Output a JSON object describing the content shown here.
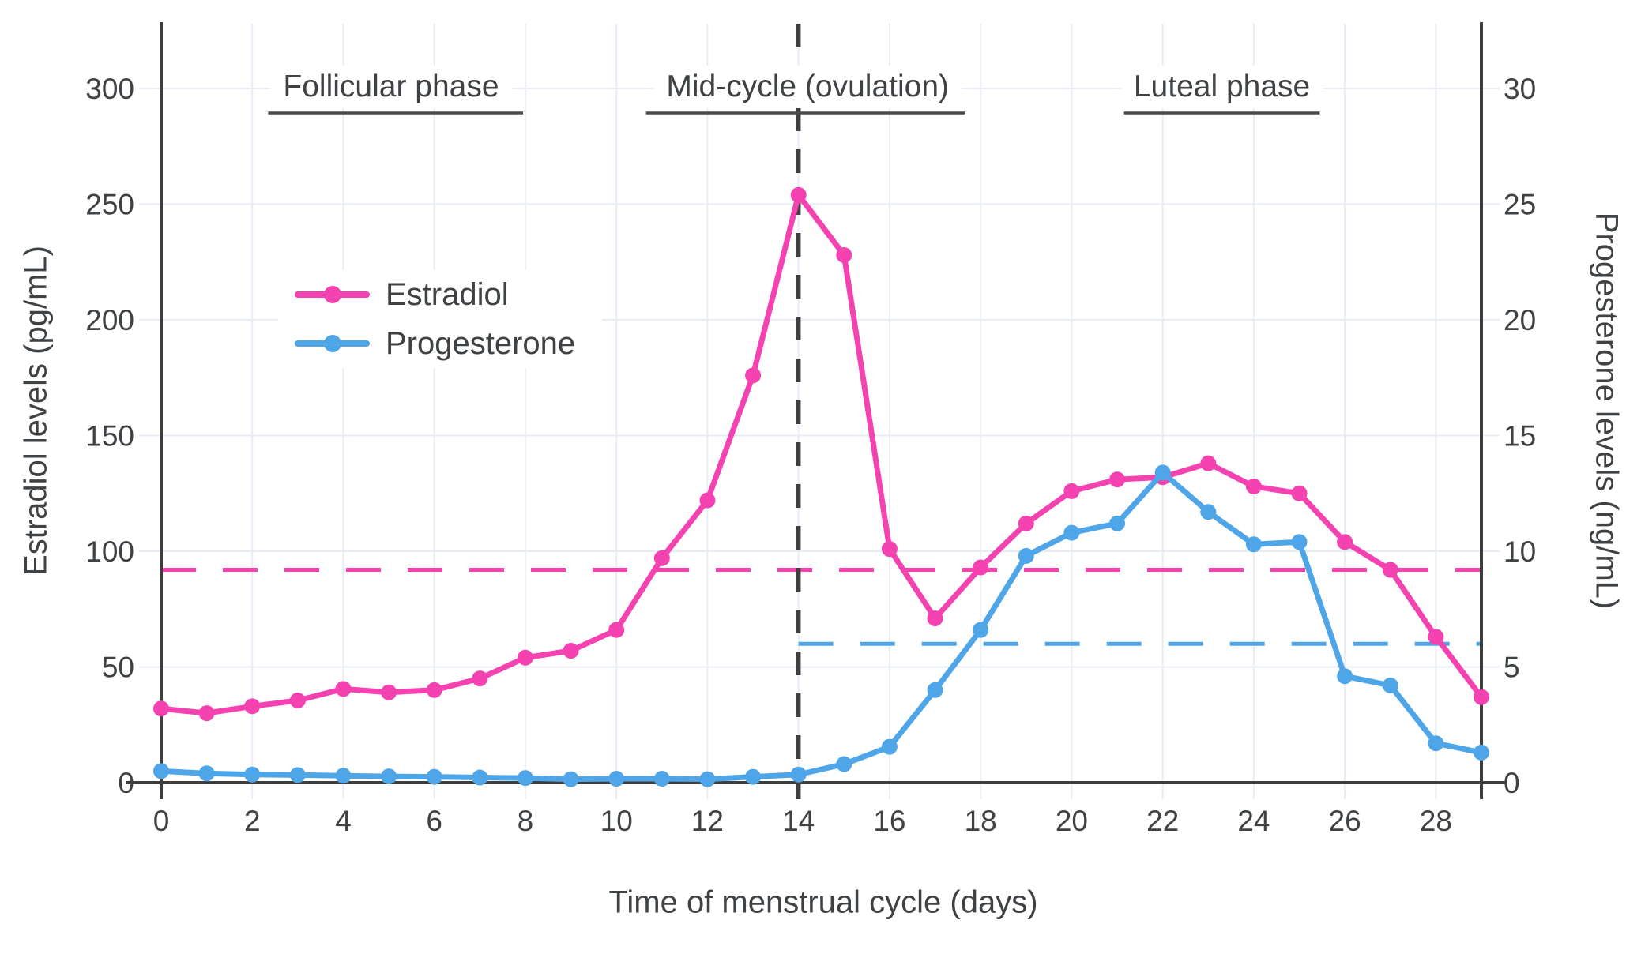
{
  "chart_data": {
    "type": "line",
    "title": "",
    "x": [
      0,
      1,
      2,
      3,
      4,
      5,
      6,
      7,
      8,
      9,
      10,
      11,
      12,
      13,
      14,
      15,
      16,
      17,
      18,
      19,
      20,
      21,
      22,
      23,
      24,
      25,
      26,
      27,
      28,
      29
    ],
    "series": [
      {
        "name": "Estradiol",
        "axis": "left",
        "color": "#f442b1",
        "values": [
          32,
          30,
          33,
          35.5,
          40.5,
          39,
          40,
          45,
          54,
          57,
          66,
          97,
          122,
          176,
          254,
          228,
          101,
          71,
          93,
          112,
          126,
          131,
          132,
          138,
          128,
          125,
          104,
          92,
          63,
          37
        ]
      },
      {
        "name": "Progesterone",
        "axis": "right",
        "color": "#4ea6e9",
        "values": [
          0.5,
          0.4,
          0.35,
          0.33,
          0.3,
          0.27,
          0.25,
          0.22,
          0.2,
          0.15,
          0.17,
          0.17,
          0.15,
          0.25,
          0.35,
          0.8,
          1.55,
          4,
          6.6,
          9.8,
          10.8,
          11.2,
          13.4,
          11.7,
          10.3,
          10.4,
          4.6,
          4.2,
          1.7,
          1.3
        ]
      }
    ],
    "x_axis": {
      "label": "Time of menstrual cycle (days)",
      "ticks": [
        0,
        2,
        4,
        6,
        8,
        10,
        12,
        14,
        16,
        18,
        20,
        22,
        24,
        26,
        28
      ],
      "range": [
        0,
        29
      ]
    },
    "y_left": {
      "label": "Estradiol levels (pg/mL)",
      "ticks": [
        0,
        50,
        100,
        150,
        200,
        250,
        300
      ],
      "range": [
        0,
        328
      ]
    },
    "y_right": {
      "label": "Progesterone levels (ng/mL)",
      "ticks": [
        0,
        5,
        10,
        15,
        20,
        25,
        30
      ],
      "range": [
        0,
        32.8
      ]
    },
    "reference_lines": [
      {
        "name": "estradiol-reference",
        "orientation": "horizontal",
        "axis": "left",
        "value": 92,
        "from_day": 0,
        "to_day": 29,
        "color": "#f442b1",
        "style": "dashed"
      },
      {
        "name": "progesterone-reference",
        "orientation": "horizontal",
        "axis": "right",
        "value": 6,
        "from_day": 14,
        "to_day": 29,
        "color": "#4ea6e9",
        "style": "dashed"
      },
      {
        "name": "ovulation-line",
        "orientation": "vertical",
        "day": 14,
        "color": "#3f3f3f",
        "style": "dashed"
      }
    ],
    "annotations": [
      {
        "label": "Follicular phase",
        "center_day": 5.05,
        "underline_from_day": 2.35,
        "underline_to_day": 7.95
      },
      {
        "label": "Mid-cycle (ovulation)",
        "center_day": 14.2,
        "underline_from_day": 10.65,
        "underline_to_day": 17.65
      },
      {
        "label": "Luteal phase",
        "center_day": 23.3,
        "underline_from_day": 21.15,
        "underline_to_day": 25.45
      }
    ],
    "legend_position": "inside-upper-left",
    "grid": true,
    "colors": {
      "grid": "#e8ecf7",
      "axis": "#3e3e3e",
      "text": "#3e4245",
      "underline": "#4a4a4a",
      "background": "#ffffff"
    }
  }
}
